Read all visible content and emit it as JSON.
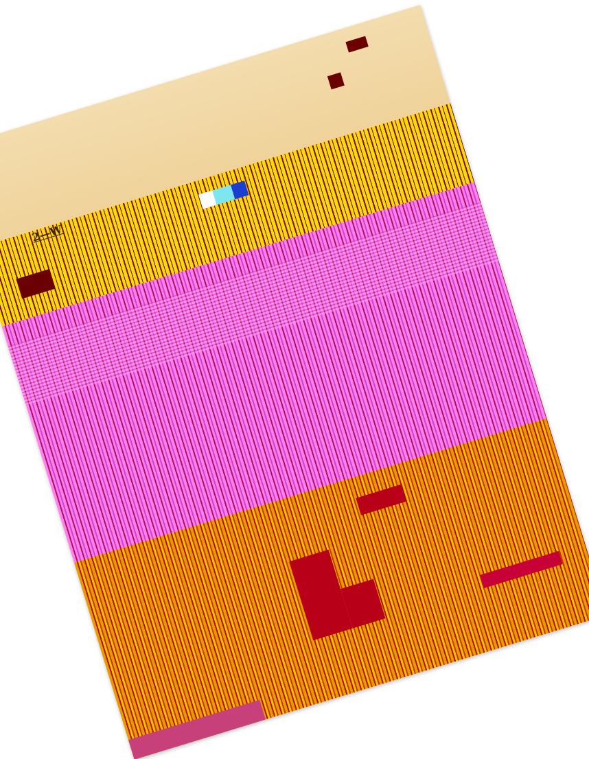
{
  "document": {
    "margin_note": "2—W",
    "colors": {
      "paper": "#f4d9a4",
      "yellow": "#ffd80a",
      "pink": "#ff80f0",
      "orange": "#e89a00",
      "dark_red": "#6b0000"
    }
  }
}
